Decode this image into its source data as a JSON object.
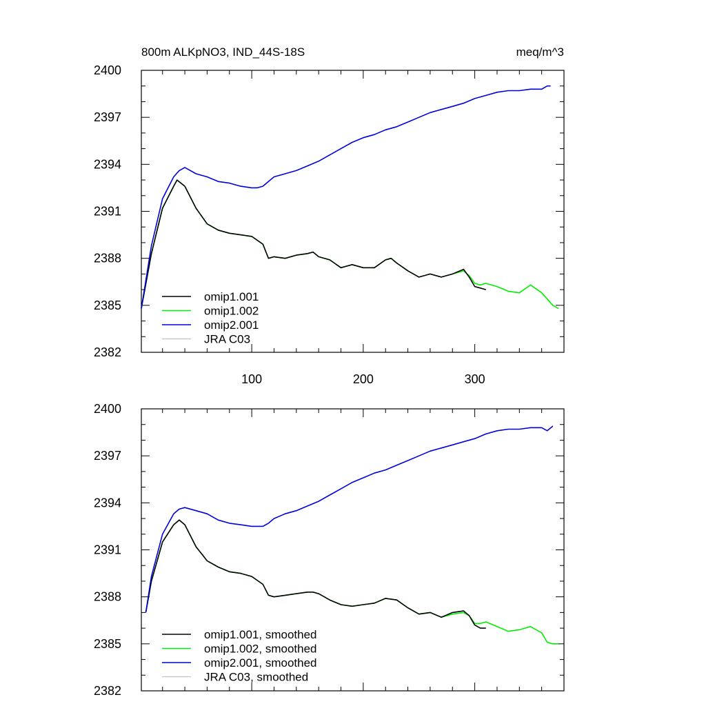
{
  "page": {
    "title_left": "800m ALKpNO3, IND_44S-18S",
    "title_right": "meq/m^3"
  },
  "chart_data": [
    {
      "type": "line",
      "ylim": [
        2382,
        2400
      ],
      "xlim": [
        1,
        380
      ],
      "yticks": [
        "2382",
        "2385",
        "2388",
        "2391",
        "2394",
        "2397",
        "2400"
      ],
      "xticks": [
        "100",
        "200",
        "300"
      ],
      "xticks_labeled": true,
      "legend_placement": "lower-left",
      "series": [
        {
          "name": "omip1.001",
          "color": "#000000",
          "x": [
            1,
            10,
            20,
            30,
            33,
            40,
            50,
            60,
            70,
            80,
            90,
            100,
            110,
            115,
            120,
            130,
            140,
            150,
            155,
            160,
            170,
            180,
            190,
            200,
            210,
            220,
            225,
            230,
            240,
            250,
            260,
            270,
            280,
            290,
            295,
            300,
            305,
            310
          ],
          "y": [
            2384.8,
            2388.3,
            2391.2,
            2392.6,
            2393.0,
            2392.6,
            2391.2,
            2390.2,
            2389.8,
            2389.6,
            2389.5,
            2389.4,
            2388.9,
            2388.0,
            2388.1,
            2388.0,
            2388.2,
            2388.3,
            2388.4,
            2388.1,
            2387.9,
            2387.4,
            2387.6,
            2387.4,
            2387.4,
            2387.9,
            2388.0,
            2387.7,
            2387.2,
            2386.8,
            2387.0,
            2386.8,
            2387.0,
            2387.3,
            2386.8,
            2386.2,
            2386.1,
            2386.0
          ]
        },
        {
          "name": "omip1.002",
          "color": "#00ee00",
          "x": [
            1,
            10,
            20,
            30,
            33,
            40,
            50,
            60,
            70,
            80,
            90,
            100,
            110,
            115,
            120,
            130,
            140,
            150,
            155,
            160,
            170,
            180,
            190,
            200,
            210,
            220,
            225,
            230,
            240,
            250,
            260,
            270,
            280,
            290,
            295,
            300,
            305,
            310,
            320,
            330,
            340,
            350,
            360,
            365,
            370,
            375
          ],
          "y": [
            2384.8,
            2388.3,
            2391.2,
            2392.6,
            2393.0,
            2392.6,
            2391.2,
            2390.2,
            2389.8,
            2389.6,
            2389.5,
            2389.4,
            2388.9,
            2388.0,
            2388.1,
            2388.0,
            2388.2,
            2388.3,
            2388.4,
            2388.1,
            2387.9,
            2387.4,
            2387.6,
            2387.4,
            2387.4,
            2387.9,
            2388.0,
            2387.7,
            2387.2,
            2386.8,
            2387.0,
            2386.8,
            2387.0,
            2387.2,
            2386.9,
            2386.4,
            2386.3,
            2386.4,
            2386.2,
            2385.9,
            2385.8,
            2386.3,
            2385.8,
            2385.4,
            2385.0,
            2384.8
          ]
        },
        {
          "name": "omip2.001",
          "color": "#0000dd",
          "x": [
            1,
            10,
            20,
            30,
            35,
            40,
            50,
            60,
            70,
            80,
            90,
            100,
            105,
            110,
            115,
            120,
            130,
            140,
            150,
            160,
            170,
            180,
            190,
            200,
            210,
            220,
            230,
            240,
            250,
            260,
            270,
            280,
            290,
            300,
            310,
            320,
            330,
            340,
            350,
            360,
            365,
            368
          ],
          "y": [
            2384.8,
            2388.8,
            2391.8,
            2393.2,
            2393.6,
            2393.8,
            2393.4,
            2393.2,
            2392.9,
            2392.8,
            2392.6,
            2392.5,
            2392.5,
            2392.6,
            2392.9,
            2393.2,
            2393.4,
            2393.6,
            2393.9,
            2394.2,
            2394.6,
            2395.0,
            2395.4,
            2395.7,
            2395.9,
            2396.2,
            2396.4,
            2396.7,
            2397.0,
            2397.3,
            2397.5,
            2397.7,
            2397.9,
            2398.2,
            2398.4,
            2398.6,
            2398.7,
            2398.7,
            2398.8,
            2398.8,
            2399.0,
            2399.0
          ]
        },
        {
          "name": "JRA C03",
          "color": "#c8c8c8",
          "x": [],
          "y": []
        }
      ]
    },
    {
      "type": "line",
      "ylim": [
        2382,
        2400
      ],
      "xlim": [
        1,
        380
      ],
      "yticks": [
        "2382",
        "2385",
        "2388",
        "2391",
        "2394",
        "2397",
        "2400"
      ],
      "xticks": [
        "",
        "",
        ""
      ],
      "xticks_labeled": false,
      "legend_placement": "lower-left",
      "series": [
        {
          "name": "omip1.001, smoothed",
          "color": "#000000",
          "x": [
            5,
            10,
            20,
            30,
            35,
            40,
            50,
            60,
            70,
            80,
            90,
            100,
            110,
            115,
            120,
            130,
            140,
            150,
            155,
            160,
            170,
            180,
            190,
            200,
            210,
            220,
            230,
            240,
            250,
            260,
            270,
            280,
            290,
            295,
            300,
            305,
            310
          ],
          "y": [
            2387.0,
            2389.0,
            2391.5,
            2392.6,
            2392.9,
            2392.6,
            2391.2,
            2390.3,
            2389.9,
            2389.6,
            2389.5,
            2389.3,
            2388.8,
            2388.1,
            2388.0,
            2388.1,
            2388.2,
            2388.3,
            2388.3,
            2388.2,
            2387.8,
            2387.5,
            2387.4,
            2387.5,
            2387.6,
            2387.9,
            2387.8,
            2387.3,
            2386.9,
            2387.0,
            2386.7,
            2387.0,
            2387.1,
            2386.8,
            2386.2,
            2386.0,
            2386.0
          ]
        },
        {
          "name": "omip1.002, smoothed",
          "color": "#00ee00",
          "x": [
            5,
            10,
            20,
            30,
            35,
            40,
            50,
            60,
            70,
            80,
            90,
            100,
            110,
            115,
            120,
            130,
            140,
            150,
            155,
            160,
            170,
            180,
            190,
            200,
            210,
            220,
            230,
            240,
            250,
            260,
            270,
            280,
            290,
            295,
            300,
            305,
            310,
            320,
            330,
            340,
            350,
            360,
            365,
            370,
            375
          ],
          "y": [
            2387.0,
            2389.0,
            2391.5,
            2392.6,
            2392.9,
            2392.6,
            2391.2,
            2390.3,
            2389.9,
            2389.6,
            2389.5,
            2389.3,
            2388.8,
            2388.1,
            2388.0,
            2388.1,
            2388.2,
            2388.3,
            2388.3,
            2388.2,
            2387.8,
            2387.5,
            2387.4,
            2387.5,
            2387.6,
            2387.9,
            2387.8,
            2387.3,
            2386.9,
            2387.0,
            2386.7,
            2386.9,
            2387.0,
            2386.8,
            2386.3,
            2386.3,
            2386.4,
            2386.1,
            2385.8,
            2385.9,
            2386.1,
            2385.7,
            2385.1,
            2385.0,
            2385.0
          ]
        },
        {
          "name": "omip2.001, smoothed",
          "color": "#0000dd",
          "x": [
            5,
            10,
            20,
            30,
            35,
            40,
            50,
            60,
            70,
            80,
            90,
            100,
            105,
            110,
            115,
            120,
            130,
            140,
            150,
            160,
            170,
            180,
            190,
            200,
            210,
            220,
            230,
            240,
            250,
            260,
            270,
            280,
            290,
            300,
            310,
            320,
            330,
            340,
            350,
            360,
            365,
            370
          ],
          "y": [
            2387.0,
            2389.3,
            2392.0,
            2393.3,
            2393.6,
            2393.7,
            2393.5,
            2393.3,
            2392.9,
            2392.7,
            2392.6,
            2392.5,
            2392.5,
            2392.5,
            2392.7,
            2393.0,
            2393.3,
            2393.5,
            2393.8,
            2394.1,
            2394.5,
            2394.9,
            2395.3,
            2395.6,
            2395.9,
            2396.1,
            2396.4,
            2396.7,
            2397.0,
            2397.3,
            2397.5,
            2397.7,
            2397.9,
            2398.1,
            2398.4,
            2398.6,
            2398.7,
            2398.7,
            2398.8,
            2398.8,
            2398.6,
            2398.9
          ]
        },
        {
          "name": "JRA C03, smoothed",
          "color": "#c8c8c8",
          "x": [],
          "y": []
        }
      ]
    }
  ]
}
